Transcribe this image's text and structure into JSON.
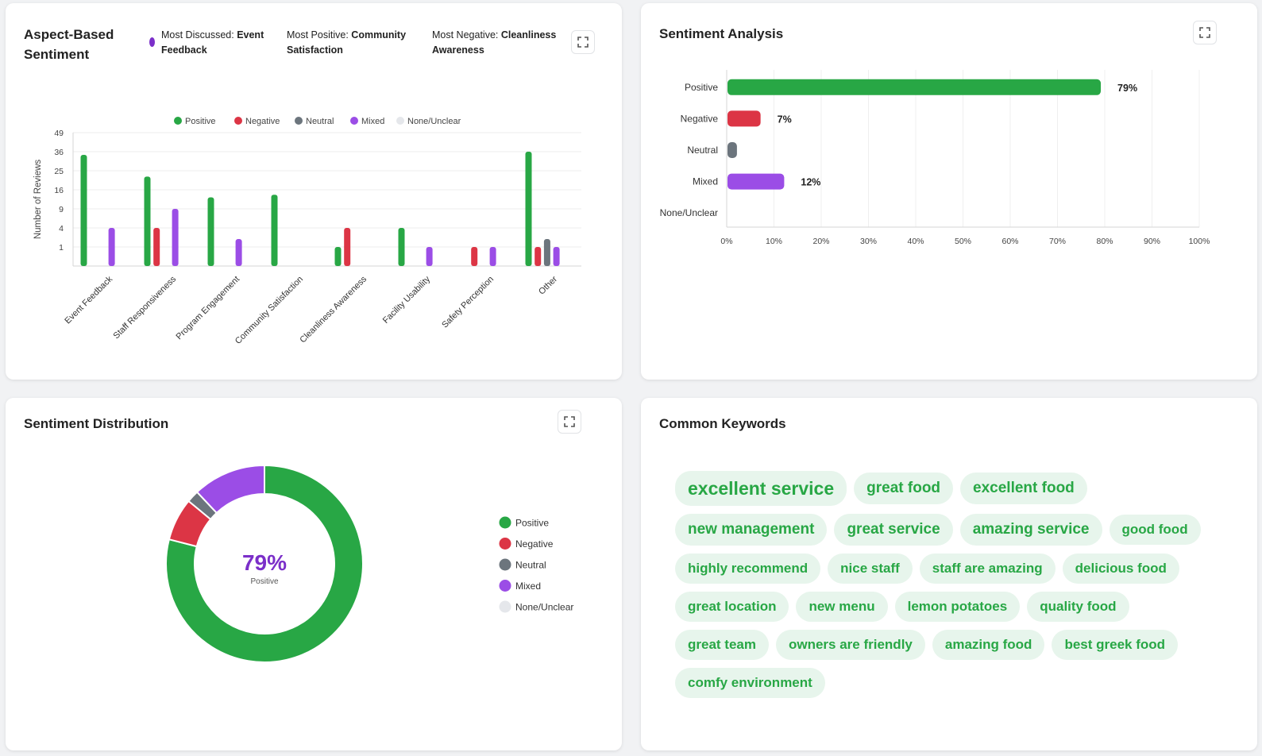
{
  "aspect_card": {
    "title_line1": "Aspect-Based",
    "title_line2": "Sentiment",
    "stats": [
      {
        "label": "Most Discussed:",
        "value_line1": "Event",
        "value_line2": "Feedback"
      },
      {
        "label": "Most Positive:",
        "value_line1": "Community",
        "value_line2": "Satisfaction"
      },
      {
        "label": "Most Negative:",
        "value_line1": "Cleanliness",
        "value_line2": "Awareness"
      }
    ],
    "expand_icon": "expand-icon"
  },
  "sentiment_card": {
    "title": "Sentiment Analysis",
    "expand_icon": "expand-icon"
  },
  "distribution_card": {
    "title": "Sentiment Distribution",
    "center_value": "79%",
    "center_label": "Positive",
    "expand_icon": "expand-icon"
  },
  "keywords_card": {
    "title": "Common Keywords",
    "keywords": [
      {
        "text": "excellent service",
        "size": 1
      },
      {
        "text": "great food",
        "size": 2
      },
      {
        "text": "excellent food",
        "size": 2
      },
      {
        "text": "new management",
        "size": 2
      },
      {
        "text": "great service",
        "size": 2
      },
      {
        "text": "amazing service",
        "size": 2
      },
      {
        "text": "good food",
        "size": 3
      },
      {
        "text": "highly recommend",
        "size": 3
      },
      {
        "text": "nice staff",
        "size": 3
      },
      {
        "text": "staff are amazing",
        "size": 3
      },
      {
        "text": "delicious food",
        "size": 3
      },
      {
        "text": "great location",
        "size": 3
      },
      {
        "text": "new menu",
        "size": 3
      },
      {
        "text": "lemon potatoes",
        "size": 3
      },
      {
        "text": "quality food",
        "size": 3
      },
      {
        "text": "great team",
        "size": 3
      },
      {
        "text": "owners are friendly",
        "size": 3
      },
      {
        "text": "amazing food",
        "size": 3
      },
      {
        "text": "best greek food",
        "size": 3
      },
      {
        "text": "comfy environment",
        "size": 3
      }
    ]
  },
  "colors": {
    "positive": "#28a745",
    "negative": "#dc3545",
    "neutral": "#6c757d",
    "mixed": "#9b4de6",
    "none": "#e5e7eb",
    "accent": "#7b2fc9",
    "keyword_bg": "#e7f5ec"
  },
  "chart_data": [
    {
      "type": "bar",
      "title": "",
      "ylabel": "Number of Reviews",
      "yscale": "sqrt",
      "yticks": [
        1,
        4,
        9,
        16,
        25,
        36,
        49
      ],
      "ylim": [
        0,
        49
      ],
      "legend_position": "top",
      "categories": [
        "Event Feedback",
        "Staff Responsiveness",
        "Program Engagement",
        "Community Satisfaction",
        "Cleanliness Awareness",
        "Facility Usability",
        "Safety Perception",
        "Other"
      ],
      "series": [
        {
          "name": "Positive",
          "values": [
            34,
            22,
            13,
            14,
            1,
            4,
            0,
            36
          ]
        },
        {
          "name": "Negative",
          "values": [
            0,
            4,
            0,
            0,
            4,
            0,
            1,
            1
          ]
        },
        {
          "name": "Neutral",
          "values": [
            0,
            0,
            0,
            0,
            0,
            0,
            0,
            2
          ]
        },
        {
          "name": "Mixed",
          "values": [
            4,
            9,
            2,
            0,
            0,
            1,
            1,
            1
          ]
        },
        {
          "name": "None/Unclear",
          "values": [
            0,
            0,
            0,
            0,
            0,
            0,
            0,
            0
          ]
        }
      ]
    },
    {
      "type": "bar",
      "orientation": "horizontal",
      "categories": [
        "Positive",
        "Negative",
        "Neutral",
        "Mixed",
        "None/Unclear"
      ],
      "values": [
        79,
        7,
        2,
        12,
        0
      ],
      "value_labels": [
        "79%",
        "7%",
        "",
        "12%",
        ""
      ],
      "xlim": [
        0,
        100
      ],
      "xticks": [
        "0%",
        "10%",
        "20%",
        "30%",
        "40%",
        "50%",
        "60%",
        "70%",
        "80%",
        "90%",
        "100%"
      ]
    },
    {
      "type": "pie",
      "style": "donut",
      "categories": [
        "Positive",
        "Negative",
        "Neutral",
        "Mixed",
        "None/Unclear"
      ],
      "values": [
        79,
        7,
        2,
        12,
        0
      ],
      "legend_position": "right"
    }
  ]
}
